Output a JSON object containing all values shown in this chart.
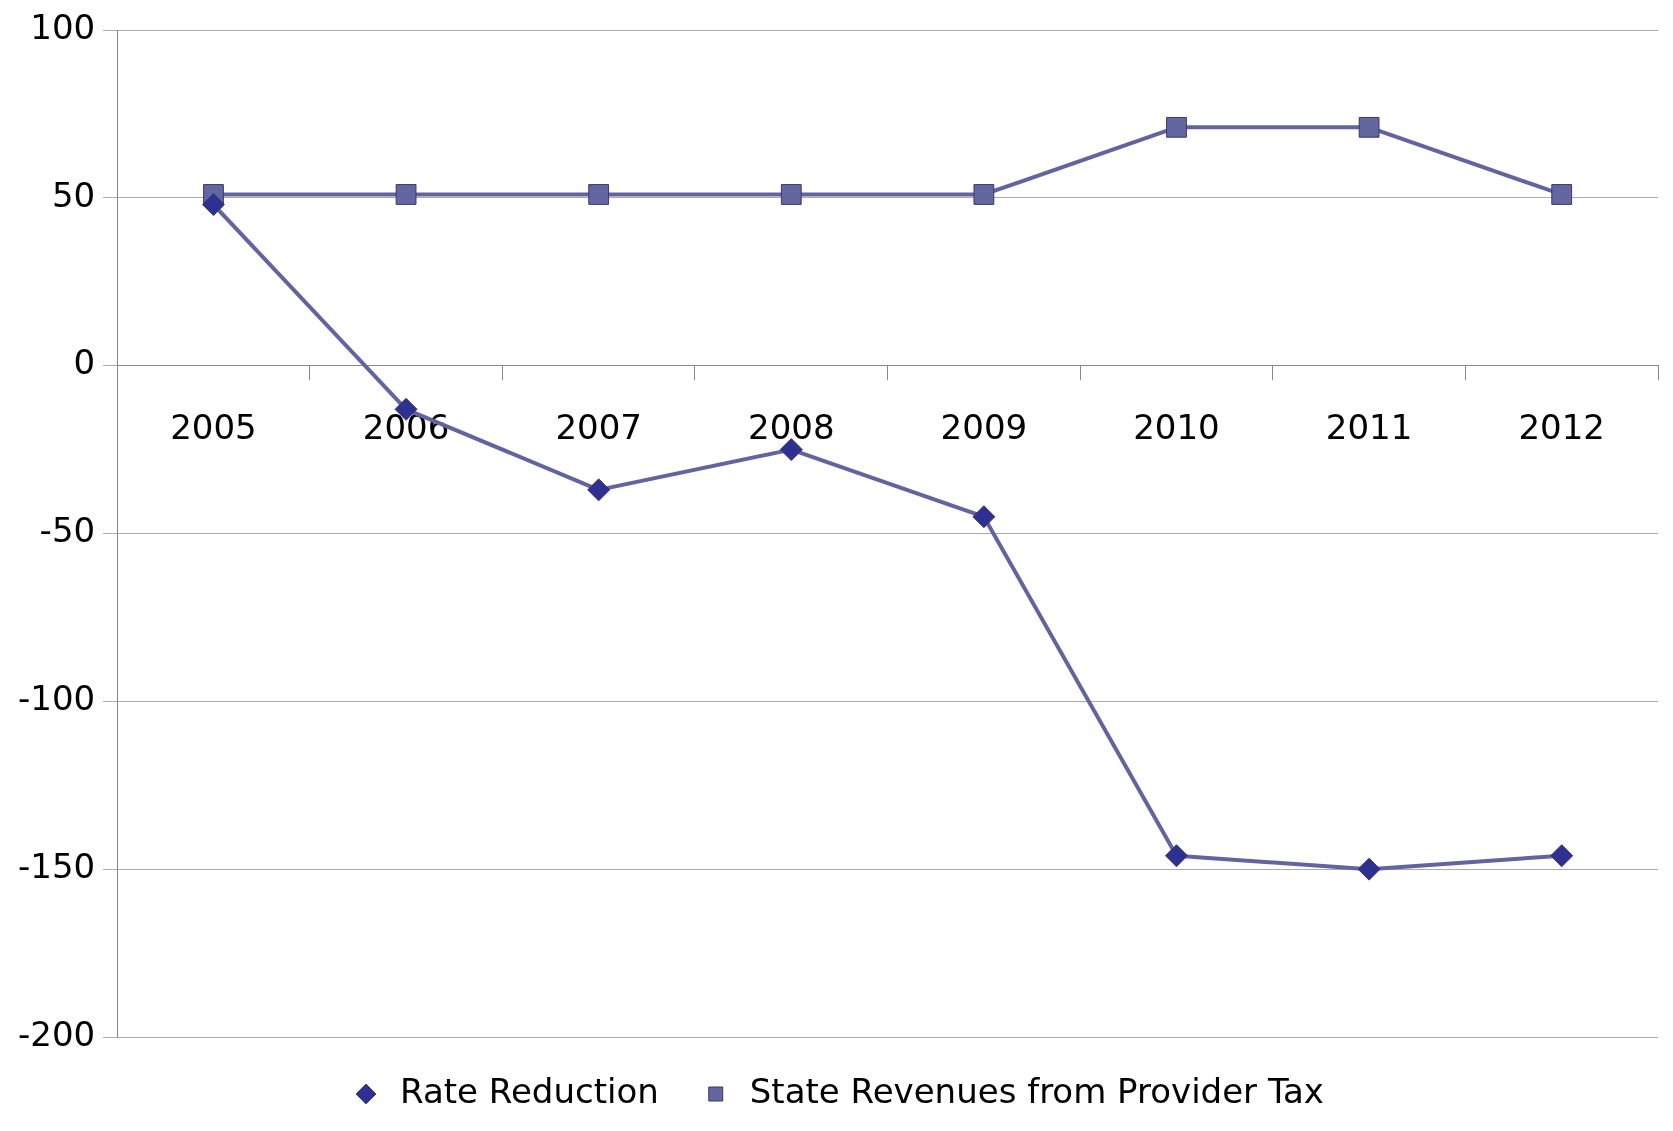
{
  "chart_data": {
    "type": "line",
    "categories": [
      "2005",
      "2006",
      "2007",
      "2008",
      "2009",
      "2010",
      "2011",
      "2012"
    ],
    "series": [
      {
        "name": "Rate Reduction",
        "color": "#6264a0",
        "marker": "diamond",
        "values": [
          48,
          -13,
          -37,
          -25,
          -45,
          -146,
          -150,
          -146
        ]
      },
      {
        "name": "State Revenues from Provider Tax",
        "color": "#6264a0",
        "marker": "square",
        "values": [
          51,
          51,
          51,
          51,
          51,
          71,
          71,
          51
        ]
      }
    ],
    "ylim": [
      -200,
      100
    ],
    "yticks": [
      -200,
      -150,
      -100,
      -50,
      0,
      50,
      100
    ],
    "grid": "y",
    "legend": "bottom",
    "line_style": "solid"
  }
}
